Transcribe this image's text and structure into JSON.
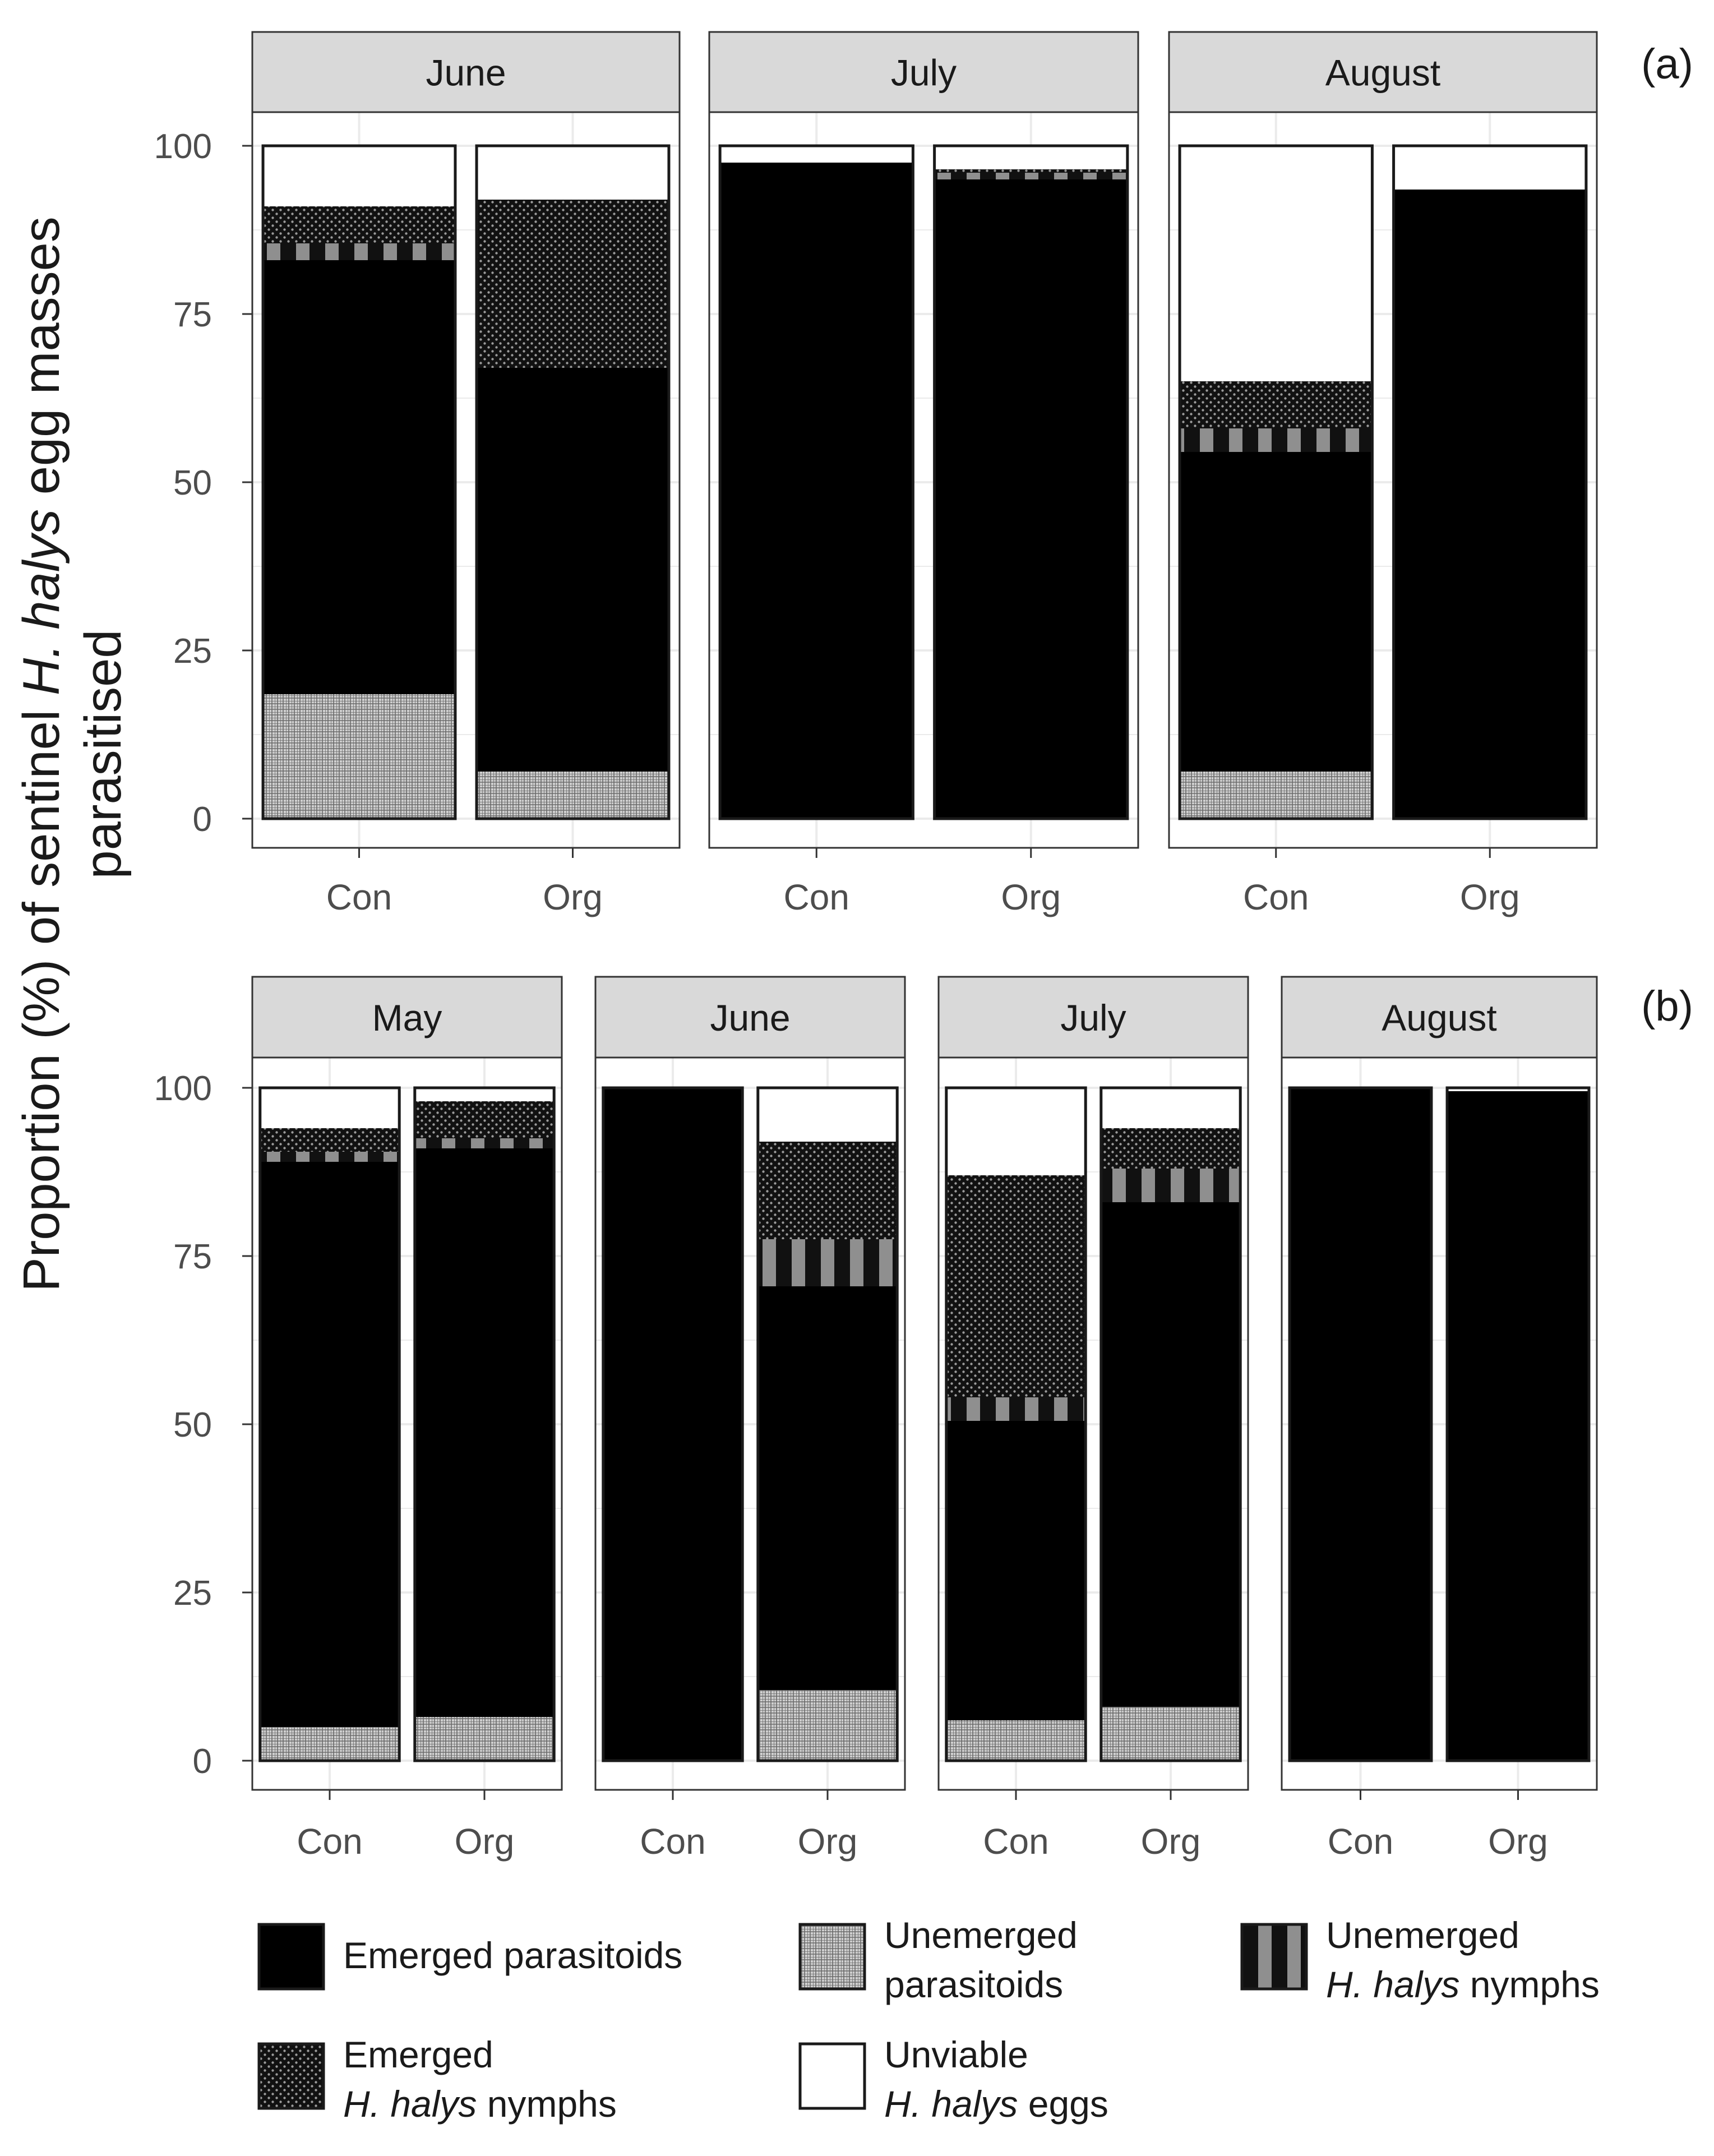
{
  "chart_data": [
    {
      "type": "bar",
      "stacked": true,
      "panel_label": "(a)",
      "ylim": [
        0,
        100
      ],
      "yticks": [
        0,
        25,
        50,
        75,
        100
      ],
      "categories": [
        "Con",
        "Org"
      ],
      "facets": [
        {
          "title": "June",
          "bars": [
            {
              "category": "Con",
              "segments": {
                "unemerged_parasitoids": 18.5,
                "emerged_parasitoids": 64.5,
                "unemerged_nymphs": 2.5,
                "emerged_nymphs": 5.5,
                "unviable_eggs": 9.0
              }
            },
            {
              "category": "Org",
              "segments": {
                "unemerged_parasitoids": 7.0,
                "emerged_parasitoids": 60.0,
                "unemerged_nymphs": 0.0,
                "emerged_nymphs": 25.0,
                "unviable_eggs": 8.0
              }
            }
          ]
        },
        {
          "title": "July",
          "bars": [
            {
              "category": "Con",
              "segments": {
                "unemerged_parasitoids": 0.0,
                "emerged_parasitoids": 97.5,
                "unemerged_nymphs": 0.0,
                "emerged_nymphs": 0.0,
                "unviable_eggs": 2.5
              }
            },
            {
              "category": "Org",
              "segments": {
                "unemerged_parasitoids": 0.0,
                "emerged_parasitoids": 95.0,
                "unemerged_nymphs": 1.0,
                "emerged_nymphs": 0.5,
                "unviable_eggs": 3.5
              }
            }
          ]
        },
        {
          "title": "August",
          "bars": [
            {
              "category": "Con",
              "segments": {
                "unemerged_parasitoids": 7.0,
                "emerged_parasitoids": 47.5,
                "unemerged_nymphs": 3.5,
                "emerged_nymphs": 7.0,
                "unviable_eggs": 35.0
              }
            },
            {
              "category": "Org",
              "segments": {
                "unemerged_parasitoids": 0.0,
                "emerged_parasitoids": 93.5,
                "unemerged_nymphs": 0.0,
                "emerged_nymphs": 0.0,
                "unviable_eggs": 6.5
              }
            }
          ]
        }
      ]
    },
    {
      "type": "bar",
      "stacked": true,
      "panel_label": "(b)",
      "ylim": [
        0,
        100
      ],
      "yticks": [
        0,
        25,
        50,
        75,
        100
      ],
      "categories": [
        "Con",
        "Org"
      ],
      "facets": [
        {
          "title": "May",
          "bars": [
            {
              "category": "Con",
              "segments": {
                "unemerged_parasitoids": 5.0,
                "emerged_parasitoids": 84.0,
                "unemerged_nymphs": 1.5,
                "emerged_nymphs": 3.5,
                "unviable_eggs": 6.0
              }
            },
            {
              "category": "Org",
              "segments": {
                "unemerged_parasitoids": 6.5,
                "emerged_parasitoids": 84.5,
                "unemerged_nymphs": 1.5,
                "emerged_nymphs": 5.5,
                "unviable_eggs": 2.0
              }
            }
          ]
        },
        {
          "title": "June",
          "bars": [
            {
              "category": "Con",
              "segments": {
                "unemerged_parasitoids": 0.0,
                "emerged_parasitoids": 100.0,
                "unemerged_nymphs": 0.0,
                "emerged_nymphs": 0.0,
                "unviable_eggs": 0.0
              }
            },
            {
              "category": "Org",
              "segments": {
                "unemerged_parasitoids": 10.5,
                "emerged_parasitoids": 60.0,
                "unemerged_nymphs": 7.0,
                "emerged_nymphs": 14.5,
                "unviable_eggs": 8.0
              }
            }
          ]
        },
        {
          "title": "July",
          "bars": [
            {
              "category": "Con",
              "segments": {
                "unemerged_parasitoids": 6.0,
                "emerged_parasitoids": 44.5,
                "unemerged_nymphs": 3.5,
                "emerged_nymphs": 33.0,
                "unviable_eggs": 13.0
              }
            },
            {
              "category": "Org",
              "segments": {
                "unemerged_parasitoids": 8.0,
                "emerged_parasitoids": 75.0,
                "unemerged_nymphs": 5.0,
                "emerged_nymphs": 6.0,
                "unviable_eggs": 6.0
              }
            }
          ]
        },
        {
          "title": "August",
          "bars": [
            {
              "category": "Con",
              "segments": {
                "unemerged_parasitoids": 0.0,
                "emerged_parasitoids": 100.0,
                "unemerged_nymphs": 0.0,
                "emerged_nymphs": 0.0,
                "unviable_eggs": 0.0
              }
            },
            {
              "category": "Org",
              "segments": {
                "unemerged_parasitoids": 0.0,
                "emerged_parasitoids": 99.5,
                "unemerged_nymphs": 0.0,
                "emerged_nymphs": 0.0,
                "unviable_eggs": 0.5
              }
            }
          ]
        }
      ]
    }
  ],
  "axis": {
    "ylabel_line1_prefix": "Proportion (%) of sentinel ",
    "ylabel_line1_italic": "H. halys",
    "ylabel_line1_suffix": " egg masses",
    "ylabel_line2": "parasitised"
  },
  "legend": [
    {
      "key": "emerged_parasitoids",
      "line1": "Emerged parasitoids",
      "line1_italic": "",
      "line2": "",
      "line2_italic": "",
      "line2_suffix": ""
    },
    {
      "key": "unemerged_parasitoids",
      "line1": "Unemerged",
      "line1_italic": "",
      "line2": "parasitoids",
      "line2_italic": "",
      "line2_suffix": ""
    },
    {
      "key": "unemerged_nymphs",
      "line1": "Unemerged",
      "line1_italic": "",
      "line2": "",
      "line2_italic": "H. halys",
      "line2_suffix": " nymphs"
    },
    {
      "key": "emerged_nymphs",
      "line1": "Emerged",
      "line1_italic": "",
      "line2": "",
      "line2_italic": "H. halys",
      "line2_suffix": " nymphs"
    },
    {
      "key": "unviable_eggs",
      "line1": "Unviable",
      "line1_italic": "",
      "line2": "",
      "line2_italic": "H. halys",
      "line2_suffix": " eggs"
    }
  ],
  "colors": {
    "emerged_parasitoids": "#000000",
    "unviable_eggs": "#ffffff",
    "strip_bg": "#d9d9d9",
    "grid": "#ebebeb",
    "tick_text": "#4d4d4d",
    "text": "#1a1a1a"
  }
}
